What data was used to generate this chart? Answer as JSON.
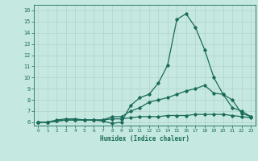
{
  "xlabel": "Humidex (Indice chaleur)",
  "xlim": [
    -0.5,
    23.5
  ],
  "ylim": [
    5.7,
    16.5
  ],
  "yticks": [
    6,
    7,
    8,
    9,
    10,
    11,
    12,
    13,
    14,
    15,
    16
  ],
  "xticks": [
    0,
    1,
    2,
    3,
    4,
    5,
    6,
    7,
    8,
    9,
    10,
    11,
    12,
    13,
    14,
    15,
    16,
    17,
    18,
    19,
    20,
    21,
    22,
    23
  ],
  "bg_color": "#c5e8e0",
  "grid_color": "#b0d5cc",
  "line_color": "#1a6b5a",
  "line1_x": [
    0,
    1,
    2,
    3,
    4,
    5,
    6,
    7,
    8,
    9,
    10,
    11,
    12,
    13,
    14,
    15,
    16,
    17,
    18,
    19,
    20,
    21,
    22,
    23
  ],
  "line1_y": [
    6.0,
    6.0,
    6.2,
    6.3,
    6.3,
    6.2,
    6.2,
    6.1,
    5.9,
    6.0,
    7.5,
    8.2,
    8.5,
    9.5,
    11.1,
    15.2,
    15.7,
    14.5,
    12.5,
    10.0,
    8.5,
    7.3,
    7.0,
    6.5
  ],
  "line2_x": [
    0,
    1,
    2,
    3,
    4,
    5,
    6,
    7,
    8,
    9,
    10,
    11,
    12,
    13,
    14,
    15,
    16,
    17,
    18,
    19,
    20,
    21,
    22,
    23
  ],
  "line2_y": [
    6.0,
    6.0,
    6.1,
    6.2,
    6.2,
    6.2,
    6.2,
    6.2,
    6.5,
    6.5,
    7.0,
    7.3,
    7.8,
    8.0,
    8.2,
    8.5,
    8.8,
    9.0,
    9.3,
    8.6,
    8.5,
    8.0,
    6.8,
    6.5
  ],
  "line3_x": [
    0,
    1,
    2,
    3,
    4,
    5,
    6,
    7,
    8,
    9,
    10,
    11,
    12,
    13,
    14,
    15,
    16,
    17,
    18,
    19,
    20,
    21,
    22,
    23
  ],
  "line3_y": [
    6.0,
    6.0,
    6.1,
    6.2,
    6.2,
    6.2,
    6.2,
    6.2,
    6.3,
    6.3,
    6.4,
    6.5,
    6.5,
    6.5,
    6.6,
    6.6,
    6.6,
    6.7,
    6.7,
    6.7,
    6.7,
    6.6,
    6.5,
    6.4
  ]
}
